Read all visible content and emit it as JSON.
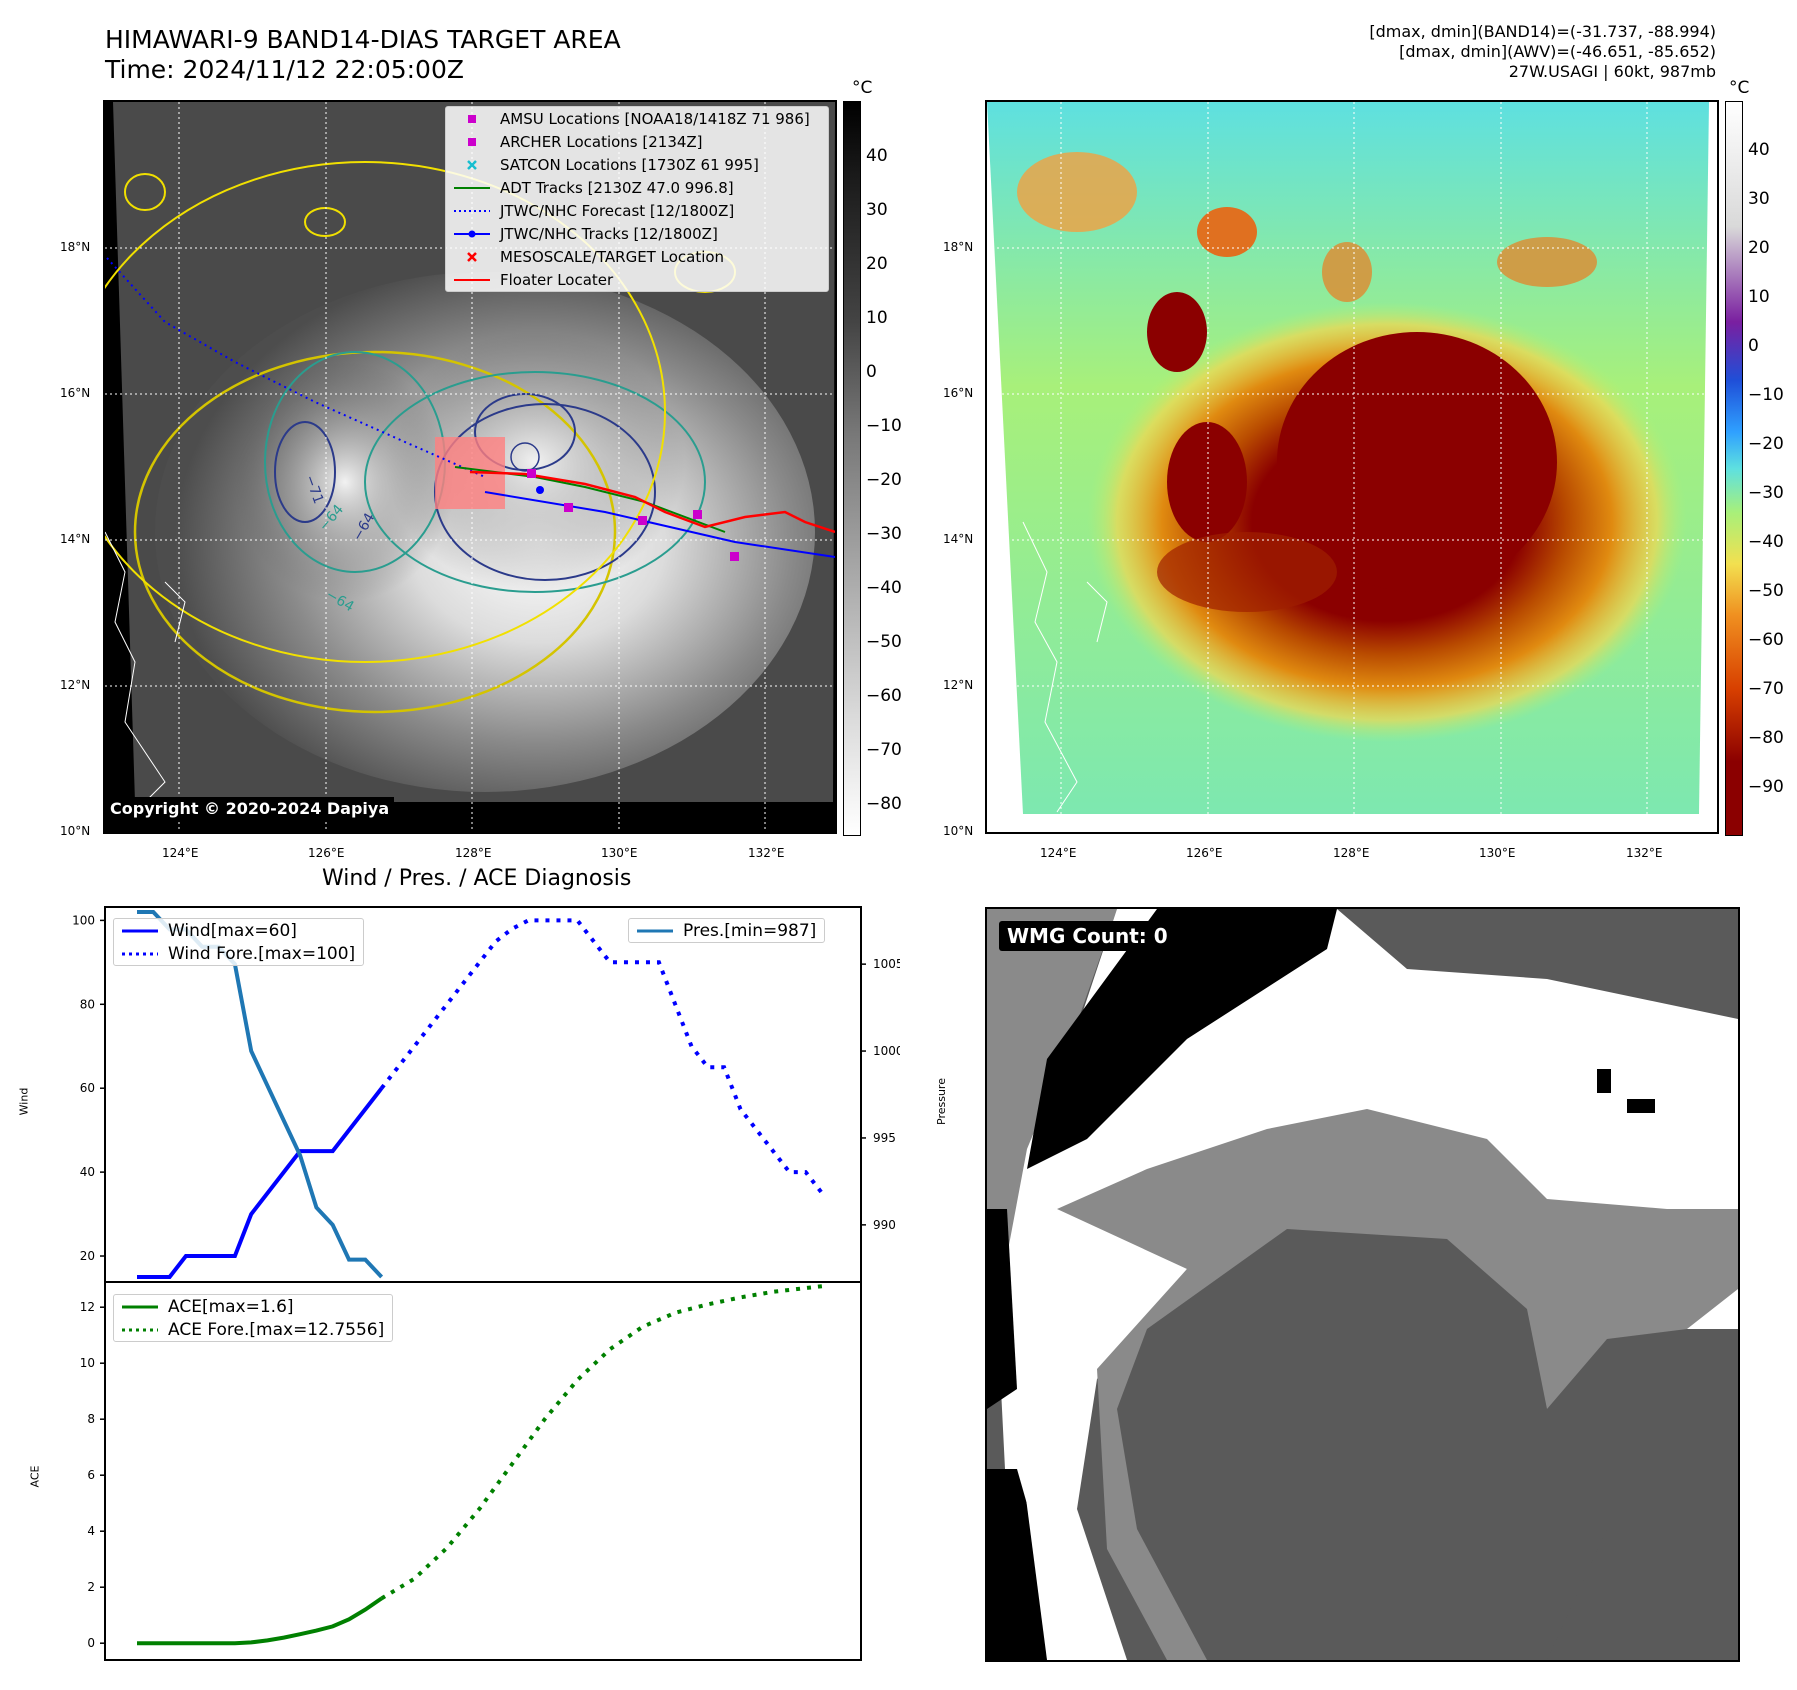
{
  "header": {
    "title_line1": "HIMAWARI-9 BAND14-DIAS TARGET AREA",
    "title_line2": "Time: 2024/11/12 22:05:00Z",
    "meta_line1": "[dmax, dmin](BAND14)=(-31.737, -88.994)",
    "meta_line2": "[dmax, dmin](AWV)=(-46.651, -85.652)",
    "meta_line3": "27W.USAGI | 60kt, 987mb"
  },
  "map": {
    "lon_ticks": [
      "124°E",
      "126°E",
      "128°E",
      "130°E",
      "132°E"
    ],
    "lat_ticks": [
      "18°N",
      "16°N",
      "14°N",
      "12°N",
      "10°N"
    ],
    "copyright": "Copyright © 2020-2024 Dapiya",
    "colorbar_unit": "°C",
    "colorbar_left_ticks": [
      "40",
      "30",
      "20",
      "10",
      "0",
      "−10",
      "−20",
      "−30",
      "−40",
      "−50",
      "−60",
      "−70",
      "−80"
    ],
    "colorbar_right_ticks": [
      "40",
      "30",
      "20",
      "10",
      "0",
      "−10",
      "−20",
      "−30",
      "−40",
      "−50",
      "−60",
      "−70",
      "−80",
      "−90"
    ],
    "contour_labels": [
      "−64",
      "−71",
      "−64",
      "−64"
    ],
    "legend": [
      {
        "label": "AMSU Locations [NOAA18/1418Z 71 986]",
        "color": "#cc00cc",
        "icon": "square-marker"
      },
      {
        "label": "ARCHER Locations [2134Z]",
        "color": "#cc00cc",
        "icon": "square-marker"
      },
      {
        "label": "SATCON Locations [1730Z 61 995]",
        "color": "#17becf",
        "icon": "x-marker"
      },
      {
        "label": "ADT Tracks [2130Z 47.0 996.8]",
        "color": "#008000",
        "icon": "solid-line"
      },
      {
        "label": "JTWC/NHC Forecast [12/1800Z]",
        "color": "#0000ff",
        "icon": "dotted-line"
      },
      {
        "label": "JTWC/NHC Tracks [12/1800Z]",
        "color": "#0000ff",
        "icon": "line-dot"
      },
      {
        "label": "MESOSCALE/TARGET Location",
        "color": "#ff0000",
        "icon": "x-marker"
      },
      {
        "label": "Floater Locater",
        "color": "#ff0000",
        "icon": "solid-line"
      }
    ]
  },
  "diagnosis": {
    "title": "Wind / Pres. / ACE Diagnosis",
    "wmg_count": "WMG Count: 0"
  },
  "chart_data": [
    {
      "type": "line",
      "title": "Wind / Pres. / ACE Diagnosis",
      "ylabel": "Wind",
      "ylabel_right": "Pressure",
      "ylim": [
        15,
        102
      ],
      "ylim_right": [
        987,
        1008
      ],
      "yticks": [
        "100",
        "80",
        "60",
        "40",
        "20"
      ],
      "yticks_right": [
        "1005",
        "1000",
        "995",
        "990"
      ],
      "series": [
        {
          "name": "Wind[max=60]",
          "axis": "left",
          "color": "#0000ff",
          "style": "solid",
          "x": [
            0,
            2,
            3,
            6,
            7,
            9,
            10,
            12,
            15
          ],
          "y": [
            15,
            15,
            20,
            20,
            30,
            40,
            45,
            45,
            60
          ]
        },
        {
          "name": "Wind Fore.[max=100]",
          "axis": "left",
          "color": "#0000ff",
          "style": "dotted",
          "x": [
            15,
            17,
            19,
            21,
            22,
            23,
            24,
            25,
            27,
            28,
            29,
            30,
            32,
            33,
            34,
            35,
            36,
            37,
            39,
            40,
            41,
            42
          ],
          "y": [
            60,
            70,
            80,
            90,
            95,
            98,
            100,
            100,
            100,
            95,
            90,
            90,
            90,
            80,
            70,
            65,
            65,
            55,
            45,
            40,
            40,
            35
          ]
        },
        {
          "name": "Pres.[min=987]",
          "axis": "right",
          "color": "#1f77b4",
          "style": "solid",
          "x": [
            0,
            1,
            2,
            3,
            4,
            5,
            6,
            7,
            8,
            9,
            10,
            11,
            12,
            13,
            14,
            15
          ],
          "y": [
            1008,
            1008,
            1007,
            1007,
            1006,
            1006,
            1005,
            1000,
            998,
            996,
            994,
            991,
            990,
            988,
            988,
            987
          ]
        }
      ]
    },
    {
      "type": "line",
      "ylabel": "ACE",
      "ylim": [
        -0.6,
        12.9
      ],
      "yticks": [
        "12",
        "10",
        "8",
        "6",
        "4",
        "2",
        "0"
      ],
      "series": [
        {
          "name": "ACE[max=1.6]",
          "color": "#008000",
          "style": "solid",
          "x": [
            0,
            2,
            4,
            6,
            7,
            8,
            9,
            10,
            11,
            12,
            13,
            14,
            15
          ],
          "y": [
            0,
            0,
            0,
            0,
            0.03,
            0.1,
            0.2,
            0.32,
            0.45,
            0.6,
            0.85,
            1.2,
            1.6
          ]
        },
        {
          "name": "ACE Fore.[max=12.7556]",
          "color": "#008000",
          "style": "dotted",
          "x": [
            15,
            17,
            19,
            21,
            23,
            25,
            27,
            29,
            31,
            33,
            35,
            37,
            39,
            42
          ],
          "y": [
            1.6,
            2.3,
            3.4,
            4.8,
            6.4,
            8.0,
            9.4,
            10.5,
            11.3,
            11.8,
            12.1,
            12.35,
            12.55,
            12.75
          ]
        }
      ]
    }
  ]
}
